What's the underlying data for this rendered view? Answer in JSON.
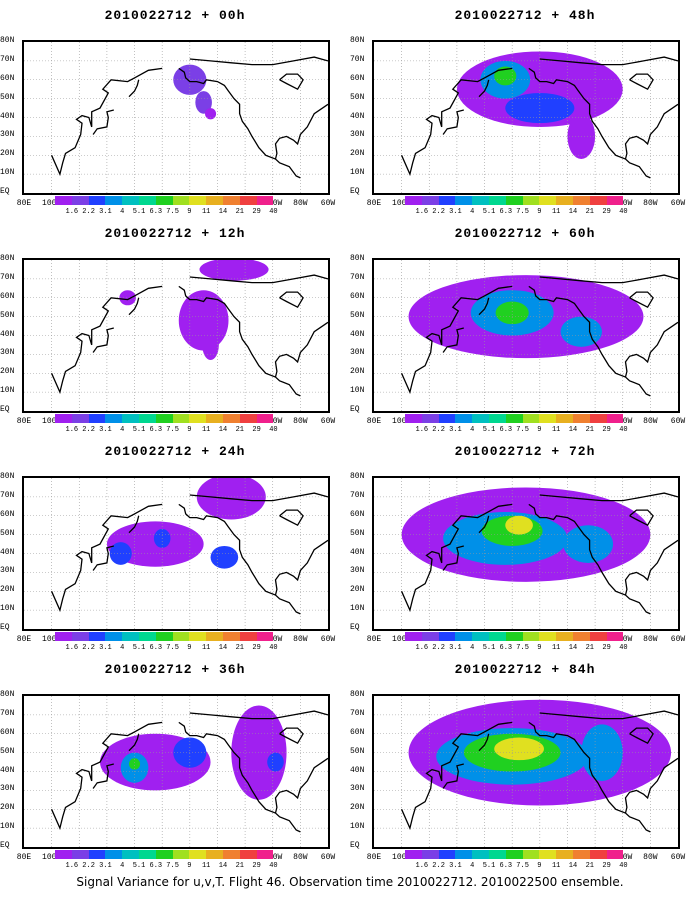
{
  "panels": [
    {
      "title": "2010022712 + 00h",
      "blobs": [
        {
          "lon": 200,
          "lat": 60,
          "rx": 12,
          "ry": 8,
          "lvl": 1
        },
        {
          "lon": 210,
          "lat": 48,
          "rx": 6,
          "ry": 6,
          "lvl": 1
        },
        {
          "lon": 215,
          "lat": 42,
          "rx": 4,
          "ry": 3,
          "lvl": 0
        }
      ]
    },
    {
      "title": "2010022712 + 12h",
      "blobs": [
        {
          "lon": 210,
          "lat": 48,
          "rx": 18,
          "ry": 16,
          "lvl": 0
        },
        {
          "lon": 232,
          "lat": 75,
          "rx": 25,
          "ry": 6,
          "lvl": 0
        },
        {
          "lon": 155,
          "lat": 60,
          "rx": 6,
          "ry": 4,
          "lvl": 0
        },
        {
          "lon": 215,
          "lat": 35,
          "rx": 6,
          "ry": 8,
          "lvl": 0
        }
      ]
    },
    {
      "title": "2010022712 + 24h",
      "blobs": [
        {
          "lon": 175,
          "lat": 45,
          "rx": 35,
          "ry": 12,
          "lvl": 0
        },
        {
          "lon": 150,
          "lat": 40,
          "rx": 8,
          "ry": 6,
          "lvl": 2
        },
        {
          "lon": 180,
          "lat": 48,
          "rx": 6,
          "ry": 5,
          "lvl": 2
        },
        {
          "lon": 230,
          "lat": 70,
          "rx": 25,
          "ry": 12,
          "lvl": 0
        },
        {
          "lon": 225,
          "lat": 38,
          "rx": 10,
          "ry": 6,
          "lvl": 2
        }
      ]
    },
    {
      "title": "2010022712 + 36h",
      "blobs": [
        {
          "lon": 175,
          "lat": 45,
          "rx": 40,
          "ry": 15,
          "lvl": 0
        },
        {
          "lon": 160,
          "lat": 42,
          "rx": 10,
          "ry": 8,
          "lvl": 3
        },
        {
          "lon": 160,
          "lat": 44,
          "rx": 4,
          "ry": 3,
          "lvl": 6
        },
        {
          "lon": 200,
          "lat": 50,
          "rx": 12,
          "ry": 8,
          "lvl": 2
        },
        {
          "lon": 250,
          "lat": 50,
          "rx": 20,
          "ry": 25,
          "lvl": 0
        },
        {
          "lon": 262,
          "lat": 45,
          "rx": 6,
          "ry": 5,
          "lvl": 2
        }
      ]
    },
    {
      "title": "2010022712 + 48h",
      "blobs": [
        {
          "lon": 200,
          "lat": 55,
          "rx": 60,
          "ry": 20,
          "lvl": 0
        },
        {
          "lon": 175,
          "lat": 60,
          "rx": 18,
          "ry": 10,
          "lvl": 3
        },
        {
          "lon": 175,
          "lat": 62,
          "rx": 8,
          "ry": 5,
          "lvl": 6
        },
        {
          "lon": 200,
          "lat": 45,
          "rx": 25,
          "ry": 8,
          "lvl": 2
        },
        {
          "lon": 230,
          "lat": 30,
          "rx": 10,
          "ry": 12,
          "lvl": 0
        }
      ]
    },
    {
      "title": "2010022712 + 60h",
      "blobs": [
        {
          "lon": 190,
          "lat": 50,
          "rx": 85,
          "ry": 22,
          "lvl": 0
        },
        {
          "lon": 180,
          "lat": 52,
          "rx": 30,
          "ry": 12,
          "lvl": 3
        },
        {
          "lon": 180,
          "lat": 52,
          "rx": 12,
          "ry": 6,
          "lvl": 6
        },
        {
          "lon": 230,
          "lat": 42,
          "rx": 15,
          "ry": 8,
          "lvl": 3
        }
      ]
    },
    {
      "title": "2010022712 + 72h",
      "blobs": [
        {
          "lon": 190,
          "lat": 50,
          "rx": 90,
          "ry": 25,
          "lvl": 0
        },
        {
          "lon": 175,
          "lat": 48,
          "rx": 45,
          "ry": 14,
          "lvl": 3
        },
        {
          "lon": 180,
          "lat": 52,
          "rx": 22,
          "ry": 8,
          "lvl": 6
        },
        {
          "lon": 185,
          "lat": 55,
          "rx": 10,
          "ry": 5,
          "lvl": 8
        },
        {
          "lon": 235,
          "lat": 45,
          "rx": 18,
          "ry": 10,
          "lvl": 3
        }
      ]
    },
    {
      "title": "2010022712 + 84h",
      "blobs": [
        {
          "lon": 200,
          "lat": 50,
          "rx": 95,
          "ry": 28,
          "lvl": 0
        },
        {
          "lon": 180,
          "lat": 48,
          "rx": 55,
          "ry": 15,
          "lvl": 3
        },
        {
          "lon": 180,
          "lat": 50,
          "rx": 35,
          "ry": 10,
          "lvl": 6
        },
        {
          "lon": 185,
          "lat": 52,
          "rx": 18,
          "ry": 6,
          "lvl": 8
        },
        {
          "lon": 245,
          "lat": 50,
          "rx": 15,
          "ry": 15,
          "lvl": 3
        }
      ]
    }
  ],
  "lat_labels": [
    "80N",
    "70N",
    "60N",
    "50N",
    "40N",
    "30N",
    "20N",
    "10N",
    "EQ"
  ],
  "lon_labels": [
    "80E",
    "100E",
    "120E",
    "140E",
    "160E",
    "180",
    "160W",
    "140W",
    "120W",
    "100W",
    "80W",
    "60W"
  ],
  "colorbar": {
    "colors": [
      "#a020f0",
      "#7b3fe6",
      "#2040ff",
      "#0090e8",
      "#00c0c0",
      "#00d890",
      "#20d020",
      "#a0e020",
      "#e0e020",
      "#e8b020",
      "#f08030",
      "#f04040",
      "#f0208c"
    ],
    "labels": [
      "1.6",
      "2.2",
      "3.1",
      "4",
      "5.1",
      "6.3",
      "7.5",
      "9",
      "11",
      "14",
      "21",
      "29",
      "40"
    ]
  },
  "footer": "Signal Variance for u,v,T. Flight 46. Observation time 2010022712. 2010022500 ensemble."
}
